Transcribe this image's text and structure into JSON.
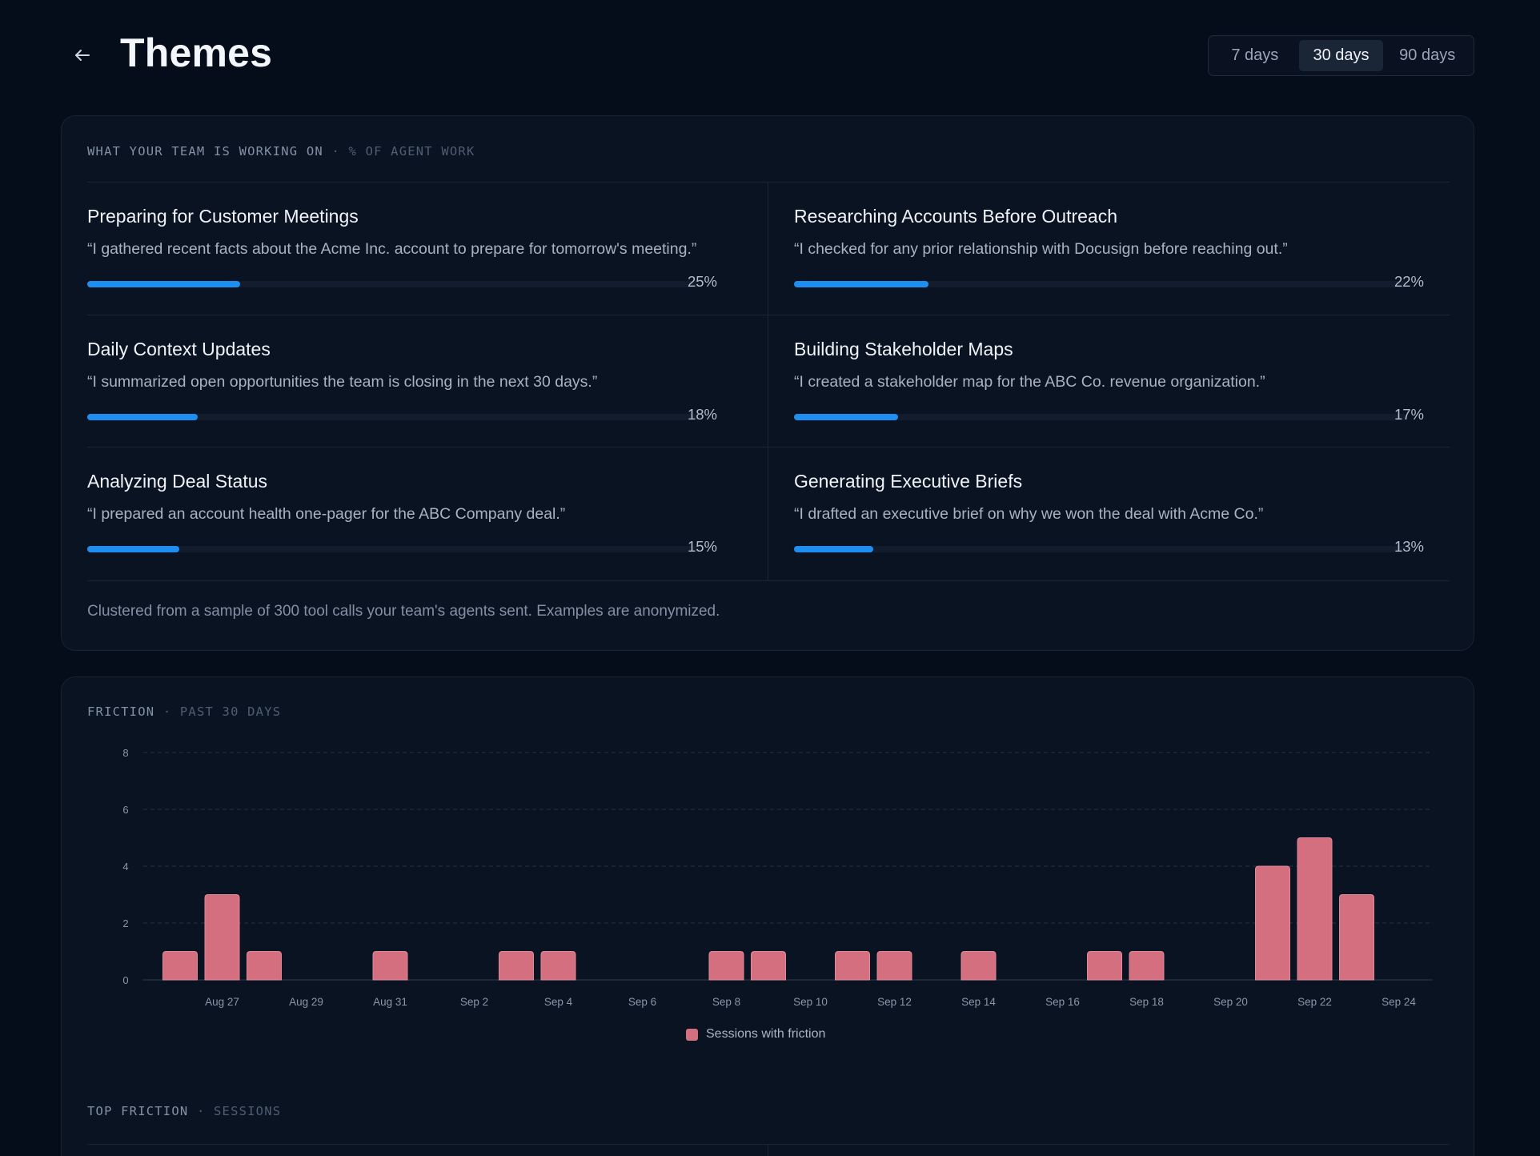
{
  "header": {
    "title": "Themes",
    "range_options": [
      "7 days",
      "30 days",
      "90 days"
    ],
    "active_range": "30 days"
  },
  "themes_card": {
    "eyebrow": "WHAT YOUR TEAM IS WORKING ON",
    "eyebrow_muted": "· % OF AGENT WORK",
    "items": [
      {
        "title": "Preparing for Customer Meetings",
        "quote": "“I gathered recent facts about the Acme Inc. account to prepare for tomorrow's meeting.”",
        "pct_label": "25%",
        "pct": 25
      },
      {
        "title": "Researching Accounts Before Outreach",
        "quote": "“I checked for any prior relationship with Docusign before reaching out.”",
        "pct_label": "22%",
        "pct": 22
      },
      {
        "title": "Daily Context Updates",
        "quote": "“I summarized open opportunities the team is closing in the next 30 days.”",
        "pct_label": "18%",
        "pct": 18
      },
      {
        "title": "Building Stakeholder Maps",
        "quote": "“I created a stakeholder map for the ABC Co. revenue organization.”",
        "pct_label": "17%",
        "pct": 17
      },
      {
        "title": "Analyzing Deal Status",
        "quote": "“I prepared an account health one-pager for the ABC Company deal.”",
        "pct_label": "15%",
        "pct": 15
      },
      {
        "title": "Generating Executive Briefs",
        "quote": "“I drafted an executive brief on why we won the deal with Acme Co.”",
        "pct_label": "13%",
        "pct": 13
      }
    ],
    "footnote": "Clustered from a sample of 300 tool calls your team's agents sent. Examples are anonymized."
  },
  "friction_card": {
    "eyebrow": "FRICTION",
    "eyebrow_muted": "· PAST 30 DAYS",
    "legend_label": "Sessions with friction",
    "top_friction_eyebrow": "TOP FRICTION",
    "top_friction_muted": "· SESSIONS"
  },
  "chart_data": {
    "type": "bar",
    "categories": [
      "Aug 26",
      "Aug 27",
      "Aug 28",
      "Aug 29",
      "Aug 30",
      "Aug 31",
      "Sep 1",
      "Sep 2",
      "Sep 3",
      "Sep 4",
      "Sep 5",
      "Sep 6",
      "Sep 7",
      "Sep 8",
      "Sep 9",
      "Sep 10",
      "Sep 11",
      "Sep 12",
      "Sep 13",
      "Sep 14",
      "Sep 15",
      "Sep 16",
      "Sep 17",
      "Sep 18",
      "Sep 19",
      "Sep 20",
      "Sep 21",
      "Sep 22",
      "Sep 23",
      "Sep 24",
      "Sep 25"
    ],
    "x_tick_labels": [
      "Aug 27",
      "Aug 29",
      "Aug 31",
      "Sep 2",
      "Sep 4",
      "Sep 6",
      "Sep 8",
      "Sep 10",
      "Sep 12",
      "Sep 14",
      "Sep 16",
      "Sep 18",
      "Sep 20",
      "Sep 22",
      "Sep 24"
    ],
    "series": [
      {
        "name": "Sessions with friction",
        "values": [
          1,
          3,
          1,
          0,
          0,
          1,
          0,
          0,
          1,
          1,
          0,
          0,
          0,
          1,
          1,
          0,
          1,
          1,
          0,
          1,
          0,
          0,
          1,
          1,
          0,
          0,
          4,
          5,
          3,
          0,
          0
        ]
      }
    ],
    "y_ticks": [
      0,
      2,
      4,
      6,
      8
    ],
    "ylim": [
      0,
      8
    ],
    "grid": true,
    "legend": "bottom-center",
    "bar_color": "#d46f80"
  }
}
